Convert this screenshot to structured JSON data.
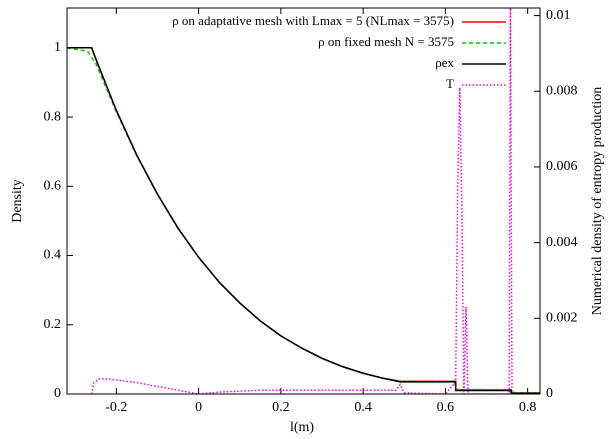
{
  "chart_data": {
    "type": "line",
    "xlabel": "l(m)",
    "ylabel": "Density",
    "y2label": "Numerical density of entropy production",
    "xlim": [
      -0.32,
      0.83
    ],
    "xticks": [
      -0.2,
      0,
      0.2,
      0.4,
      0.6,
      0.8
    ],
    "ylim": [
      0,
      1.115
    ],
    "yticks": [
      0,
      0.2,
      0.4,
      0.6,
      0.8,
      1
    ],
    "y2lim": [
      0,
      0.0102
    ],
    "y2ticks": [
      0,
      0.002,
      0.004,
      0.006,
      0.008,
      0.01
    ],
    "legend": "top-right",
    "series": [
      {
        "name": "ρ on adaptative mesh with Lmax =  5 (NLmax =  3575)",
        "color": "#ff0000",
        "dash": "none",
        "x": [
          -0.32,
          -0.26,
          -0.25,
          -0.2,
          -0.15,
          -0.1,
          -0.05,
          0,
          0.05,
          0.1,
          0.15,
          0.2,
          0.25,
          0.3,
          0.35,
          0.4,
          0.45,
          0.49,
          0.625,
          0.625,
          0.76,
          0.76,
          0.83
        ],
        "values": [
          1,
          1,
          0.968,
          0.819,
          0.689,
          0.577,
          0.479,
          0.395,
          0.323,
          0.263,
          0.211,
          0.168,
          0.133,
          0.103,
          0.079,
          0.06,
          0.045,
          0.037,
          0.037,
          0.012,
          0.012,
          0.003,
          0.003
        ]
      },
      {
        "name": "ρ on fixed mesh N =  3575",
        "color": "#00cc00",
        "dash": "4,3",
        "x": [
          -0.32,
          -0.27,
          -0.25,
          -0.2,
          -0.15,
          -0.1,
          -0.05,
          0,
          0.05,
          0.1,
          0.15,
          0.2,
          0.25,
          0.3,
          0.35,
          0.4,
          0.45,
          0.5,
          0.62,
          0.63,
          0.75,
          0.77,
          0.83
        ],
        "values": [
          1,
          0.99,
          0.955,
          0.815,
          0.687,
          0.576,
          0.478,
          0.395,
          0.323,
          0.263,
          0.211,
          0.168,
          0.133,
          0.103,
          0.079,
          0.06,
          0.045,
          0.036,
          0.036,
          0.013,
          0.012,
          0.003,
          0.003
        ]
      },
      {
        "name": "ρex",
        "color": "#000000",
        "dash": "none",
        "x": [
          -0.32,
          -0.26,
          -0.25,
          -0.2,
          -0.15,
          -0.1,
          -0.05,
          0,
          0.05,
          0.1,
          0.15,
          0.2,
          0.25,
          0.3,
          0.35,
          0.4,
          0.45,
          0.49,
          0.625,
          0.625,
          0.76,
          0.76,
          0.83
        ],
        "values": [
          1,
          1,
          0.968,
          0.819,
          0.689,
          0.577,
          0.479,
          0.395,
          0.323,
          0.263,
          0.211,
          0.168,
          0.133,
          0.103,
          0.079,
          0.06,
          0.045,
          0.035,
          0.035,
          0.01,
          0.01,
          0.002,
          0.002
        ]
      },
      {
        "name": "T",
        "color": "#ff00ff",
        "dash": "1.5,2",
        "axis": "y2",
        "x": [
          -0.26,
          -0.255,
          -0.24,
          -0.22,
          -0.15,
          -0.05,
          0,
          0.05,
          0.15,
          0.3,
          0.45,
          0.48,
          0.49,
          0.5,
          0.6,
          0.615,
          0.625,
          0.63,
          0.635,
          0.64,
          0.645,
          0.65,
          0.655,
          0.7,
          0.755,
          0.758,
          0.762,
          0.83
        ],
        "values": [
          0,
          0.0003,
          0.0004,
          0.0004,
          0.0003,
          0.0001,
          0,
          5e-05,
          0.0001,
          0.0001,
          0.0001,
          0.0001,
          0.00025,
          3e-05,
          0,
          0.0002,
          0.0003,
          0.0055,
          0.0081,
          0.005,
          0,
          0.0023,
          0,
          0,
          0,
          0.0102,
          0,
          0
        ]
      }
    ]
  }
}
